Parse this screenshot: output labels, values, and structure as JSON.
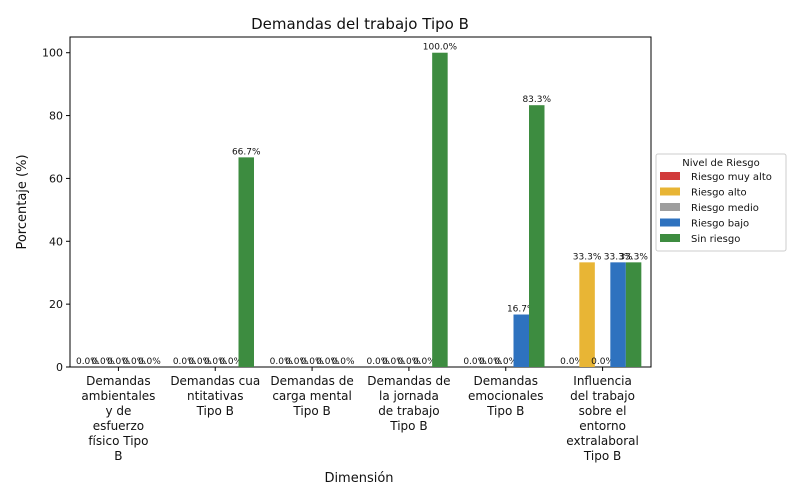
{
  "chart_data": {
    "type": "bar",
    "title": "Demandas del trabajo Tipo B",
    "xlabel": "Dimensión",
    "ylabel": "Porcentaje (%)",
    "ylim": [
      0,
      105
    ],
    "yticks": [
      0,
      20,
      40,
      60,
      80,
      100
    ],
    "grid": false,
    "legend": {
      "title": "Nivel de Riesgo",
      "placement": "right"
    },
    "categories": [
      [
        "Demandas",
        "ambientales",
        "y de",
        "esfuerzo",
        "físico Tipo",
        "B"
      ],
      [
        "Demandas cua",
        "ntitativas",
        "Tipo B"
      ],
      [
        "Demandas de",
        "carga mental",
        "Tipo B"
      ],
      [
        "Demandas de",
        "la jornada",
        "de trabajo",
        "Tipo B"
      ],
      [
        "Demandas",
        "emocionales",
        "Tipo B"
      ],
      [
        "Influencia",
        "del trabajo",
        "sobre el",
        "entorno",
        "extralaboral",
        "Tipo B"
      ]
    ],
    "series": [
      {
        "name": "Riesgo muy alto",
        "color": "#d13b3b",
        "values": [
          0,
          0,
          0,
          0,
          0,
          0
        ],
        "labels": [
          "0.0%",
          "0.0%",
          "0.0%",
          "0.0%",
          "0.0%",
          "0.0%"
        ]
      },
      {
        "name": "Riesgo alto",
        "color": "#e8b535",
        "values": [
          0,
          0,
          0,
          0,
          0,
          33.3
        ],
        "labels": [
          "0.0%",
          "0.0%",
          "0.0%",
          "0.0%",
          "0.0%",
          "33.3%"
        ]
      },
      {
        "name": "Riesgo medio",
        "color": "#9e9e9e",
        "values": [
          0,
          0,
          0,
          0,
          0,
          0
        ],
        "labels": [
          "0.0%",
          "0.0%",
          "0.0%",
          "0.0%",
          "0.0%",
          "0.0%"
        ]
      },
      {
        "name": "Riesgo bajo",
        "color": "#2e72bf",
        "values": [
          0,
          0,
          0,
          0,
          16.7,
          33.3
        ],
        "labels": [
          "0.0%",
          "0.0%",
          "0.0%",
          "0.0%",
          "16.7%",
          "33.3%"
        ]
      },
      {
        "name": "Sin riesgo",
        "color": "#3d8c40",
        "values": [
          0,
          66.7,
          0,
          100,
          83.3,
          33.3
        ],
        "labels": [
          "0.0%",
          "66.7%",
          "0.0%",
          "100.0%",
          "83.3%",
          "33.3%"
        ]
      }
    ]
  }
}
